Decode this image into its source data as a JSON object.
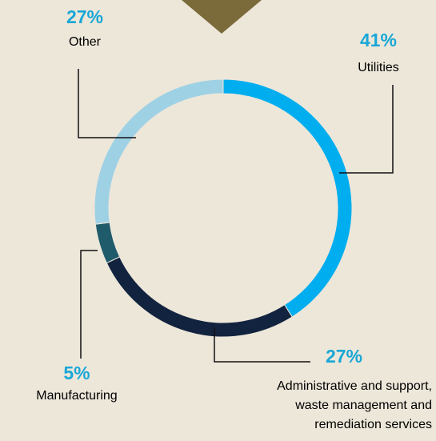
{
  "chart_data": {
    "type": "pie",
    "variant": "donut",
    "slices": [
      {
        "label": "Utilities",
        "value": 41,
        "value_label": "41%",
        "color": "#00aeef"
      },
      {
        "label": "Administrative and support, waste management and remediation services",
        "value": 27,
        "value_label": "27%",
        "color": "#12233f"
      },
      {
        "label": "Manufacturing",
        "value": 5,
        "value_label": "5%",
        "color": "#1f5b6b"
      },
      {
        "label": "Other",
        "value": 27,
        "value_label": "27%",
        "color": "#9fd1e4"
      }
    ],
    "label_lines": [
      [
        "Utilities"
      ],
      [
        "Administrative and support,",
        "waste management and",
        "remediation services"
      ],
      [
        "Manufacturing"
      ],
      [
        "Other"
      ]
    ],
    "percent_color": "#19a7d6",
    "legend": "none"
  }
}
